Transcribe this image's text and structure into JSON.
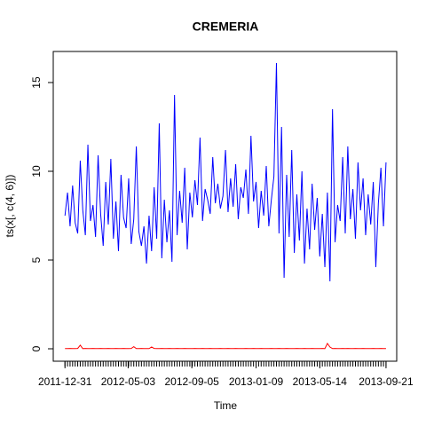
{
  "chart_data": {
    "type": "line",
    "title": "CREMERIA",
    "x_label": "Time",
    "y_label": "ts(x[, c(4, 6)])",
    "x": [
      0,
      5,
      10,
      15,
      20,
      25,
      30,
      35,
      40,
      45,
      50,
      55,
      60,
      65,
      70,
      75,
      80,
      85,
      90,
      95,
      100,
      105,
      110,
      115,
      120,
      125,
      130,
      135,
      140,
      145,
      150,
      155,
      160,
      165,
      170,
      175,
      180,
      185,
      190,
      195,
      200,
      205,
      210,
      215,
      220,
      225,
      230,
      235,
      240,
      245,
      250,
      255,
      260,
      265,
      270,
      275,
      280,
      285,
      290,
      295,
      300,
      305,
      310,
      315,
      320,
      325,
      330,
      335,
      340,
      345,
      350,
      355,
      360,
      365,
      370,
      375,
      380,
      385,
      390,
      395,
      400,
      405,
      410,
      415,
      420,
      425,
      430,
      435,
      440,
      445,
      450,
      455,
      460,
      465,
      470,
      475,
      480,
      485,
      490,
      495,
      500,
      505,
      510,
      515,
      520,
      525,
      530,
      535,
      540,
      545,
      550,
      555,
      560,
      565,
      570,
      575,
      580,
      585,
      590,
      595,
      600,
      605,
      610,
      615,
      620,
      625,
      630
    ],
    "series": [
      {
        "color": "#0000ff",
        "values": [
          7.5,
          8.8,
          6.9,
          9.2,
          7.1,
          6.5,
          10.6,
          7.8,
          6.4,
          11.5,
          7.2,
          8.1,
          6.3,
          10.9,
          7.6,
          5.8,
          9.4,
          7.0,
          10.7,
          6.2,
          8.3,
          5.5,
          9.8,
          7.4,
          6.8,
          9.6,
          5.9,
          7.3,
          11.4,
          6.6,
          5.8,
          6.9,
          4.8,
          7.5,
          5.5,
          9.1,
          6.2,
          12.7,
          5.1,
          8.4,
          6.0,
          7.8,
          4.9,
          14.3,
          6.4,
          8.9,
          7.1,
          10.2,
          5.6,
          8.8,
          7.4,
          9.5,
          8.1,
          11.9,
          7.2,
          9.0,
          8.4,
          7.6,
          10.8,
          8.2,
          9.3,
          7.9,
          8.6,
          11.2,
          7.7,
          9.6,
          8.0,
          10.4,
          7.3,
          9.1,
          8.5,
          10.1,
          7.6,
          12.0,
          8.3,
          9.4,
          6.8,
          8.9,
          7.5,
          10.3,
          6.9,
          8.4,
          9.7,
          16.1,
          6.5,
          12.5,
          4.0,
          9.8,
          6.3,
          11.2,
          5.4,
          8.7,
          6.1,
          10.0,
          4.8,
          7.9,
          5.6,
          9.3,
          6.7,
          8.5,
          5.2,
          7.6,
          4.6,
          8.8,
          3.8,
          13.5,
          6.0,
          8.1,
          7.2,
          10.8,
          6.5,
          11.4,
          7.3,
          9.0,
          6.2,
          10.5,
          7.8,
          9.6,
          6.4,
          8.7,
          7.0,
          9.4,
          4.6,
          8.2,
          10.2,
          6.9,
          10.5
        ]
      },
      {
        "color": "#ff0000",
        "values": [
          0.01,
          0.01,
          0.02,
          0.01,
          0.01,
          0.02,
          0.2,
          0.01,
          0.02,
          0.01,
          0.01,
          0.02,
          0.01,
          0.01,
          0.02,
          0.01,
          0.01,
          0.02,
          0.01,
          0.01,
          0.02,
          0.01,
          0.01,
          0.02,
          0.01,
          0.01,
          0.02,
          0.12,
          0.01,
          0.01,
          0.02,
          0.01,
          0.01,
          0.01,
          0.1,
          0.02,
          0.01,
          0.01,
          0.02,
          0.01,
          0.01,
          0.02,
          0.01,
          0.01,
          0.02,
          0.01,
          0.01,
          0.02,
          0.01,
          0.01,
          0.01,
          0.02,
          0.01,
          0.01,
          0.02,
          0.01,
          0.01,
          0.02,
          0.01,
          0.01,
          0.01,
          0.02,
          0.01,
          0.01,
          0.02,
          0.01,
          0.01,
          0.02,
          0.01,
          0.01,
          0.01,
          0.02,
          0.01,
          0.01,
          0.02,
          0.01,
          0.01,
          0.02,
          0.01,
          0.01,
          0.01,
          0.02,
          0.01,
          0.01,
          0.02,
          0.01,
          0.01,
          0.02,
          0.01,
          0.01,
          0.01,
          0.02,
          0.01,
          0.01,
          0.02,
          0.01,
          0.01,
          0.02,
          0.01,
          0.01,
          0.01,
          0.02,
          0.01,
          0.3,
          0.1,
          0.01,
          0.02,
          0.01,
          0.01,
          0.02,
          0.01,
          0.02,
          0.01,
          0.01,
          0.02,
          0.01,
          0.01,
          0.02,
          0.01,
          0.01,
          0.01,
          0.02,
          0.01,
          0.01,
          0.02,
          0.01,
          0.01
        ]
      }
    ],
    "xlim": [
      -23,
      651
    ],
    "ylim": [
      -0.7,
      16.75
    ],
    "xticks": [
      {
        "value": 0,
        "label": "2011-12-31"
      },
      {
        "value": 124,
        "label": "2012-05-03"
      },
      {
        "value": 249,
        "label": "2012-09-05"
      },
      {
        "value": 375,
        "label": "2013-01-09"
      },
      {
        "value": 500,
        "label": "2013-05-14"
      },
      {
        "value": 630,
        "label": "2013-09-21"
      }
    ],
    "yticks": [
      0,
      5,
      10,
      15
    ]
  }
}
